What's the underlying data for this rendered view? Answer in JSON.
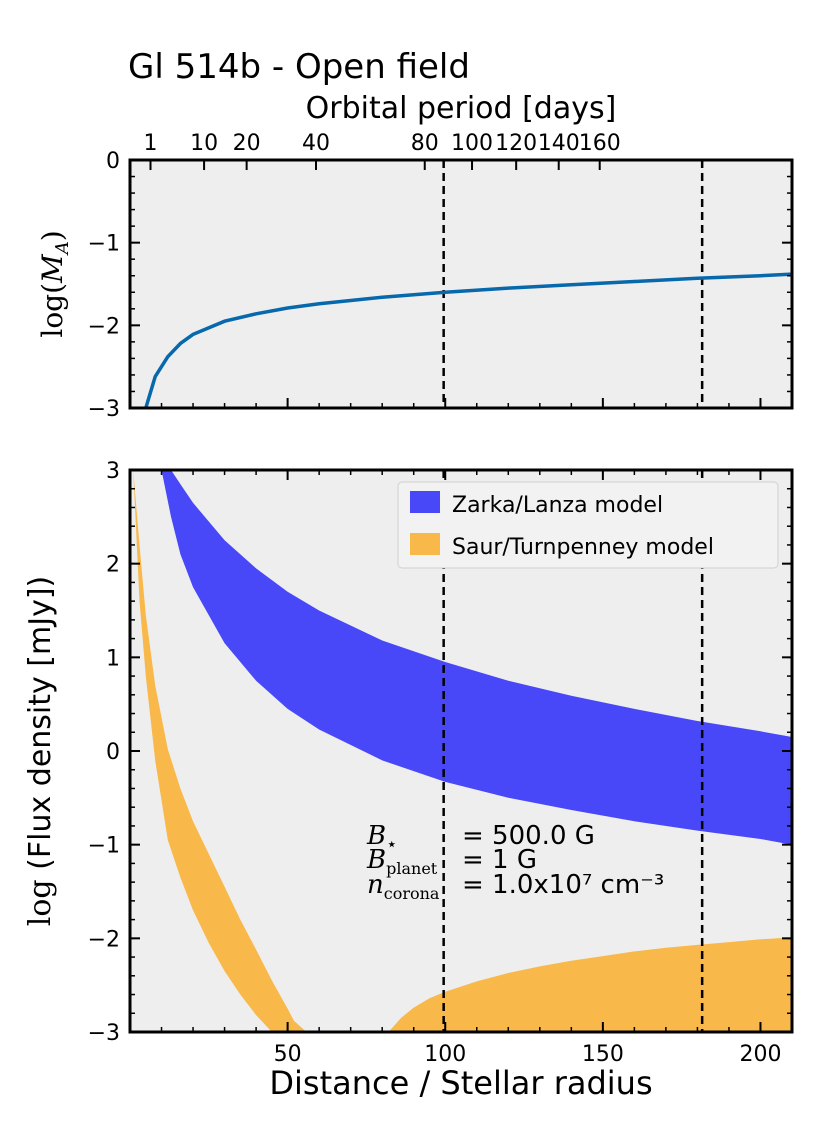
{
  "figure_title": "Gl 514b - Open field",
  "chart_data": [
    {
      "type": "line",
      "panel": "top",
      "title": "",
      "secondary_xlabel": "Orbital period [days]",
      "secondary_xticks": [
        {
          "label": "1",
          "distance": 6.5
        },
        {
          "label": "10",
          "distance": 23.5
        },
        {
          "label": "20",
          "distance": 37
        },
        {
          "label": "40",
          "distance": 59
        },
        {
          "label": "80",
          "distance": 93.5
        },
        {
          "label": "100",
          "distance": 108.5
        },
        {
          "label": "120",
          "distance": 122.5
        },
        {
          "label": "140",
          "distance": 136
        },
        {
          "label": "160",
          "distance": 149
        }
      ],
      "ylabel": "log(M_A)",
      "ylim": [
        -3,
        0
      ],
      "yticks": [
        0,
        -1,
        -2,
        -3
      ],
      "ytick_labels": [
        "0",
        "−1",
        "−2",
        "−3"
      ],
      "xlim": [
        0,
        210
      ],
      "grid": false,
      "series": [
        {
          "color": "#0868ac",
          "x": [
            5,
            8,
            12,
            16,
            20,
            30,
            40,
            50,
            60,
            70,
            80,
            90,
            100,
            120,
            140,
            160,
            180,
            200,
            210
          ],
          "y": [
            -3.0,
            -2.62,
            -2.38,
            -2.22,
            -2.11,
            -1.95,
            -1.86,
            -1.79,
            -1.74,
            -1.7,
            -1.66,
            -1.63,
            -1.6,
            -1.55,
            -1.51,
            -1.47,
            -1.43,
            -1.4,
            -1.38
          ]
        }
      ],
      "vlines": [
        99.5,
        181.5
      ]
    },
    {
      "type": "area",
      "panel": "bottom",
      "xlabel": "Distance / Stellar radius",
      "ylabel": "log (Flux density [mJy])",
      "xlim": [
        0,
        210
      ],
      "ylim": [
        -3,
        3
      ],
      "xticks": [
        50,
        100,
        150,
        200
      ],
      "yticks": [
        3,
        2,
        1,
        0,
        -1,
        -2,
        -3
      ],
      "ytick_labels": [
        "3",
        "2",
        "1",
        "0",
        "−1",
        "−2",
        "−3"
      ],
      "grid": false,
      "legend_position": "top-right",
      "legend": [
        {
          "label": "Zarka/Lanza model",
          "color": "#4848f8"
        },
        {
          "label": "Saur/Turnpenney model",
          "color": "#f8b84a"
        }
      ],
      "series": [
        {
          "name": "Zarka/Lanza model",
          "color": "#4848f8",
          "x": [
            10,
            13,
            16,
            20,
            30,
            40,
            50,
            60,
            80,
            100,
            120,
            140,
            160,
            180,
            200,
            210
          ],
          "upper": [
            3.0,
            3.0,
            2.85,
            2.65,
            2.25,
            1.95,
            1.7,
            1.5,
            1.18,
            0.95,
            0.75,
            0.59,
            0.45,
            0.32,
            0.21,
            0.15
          ],
          "lower": [
            3.0,
            2.5,
            2.1,
            1.75,
            1.15,
            0.75,
            0.45,
            0.23,
            -0.1,
            -0.33,
            -0.5,
            -0.63,
            -0.75,
            -0.85,
            -0.94,
            -1.0
          ]
        },
        {
          "name": "Saur/Turnpenney model",
          "color": "#f8b84a",
          "x": [
            1,
            3,
            5,
            8,
            12,
            16,
            20,
            25,
            30,
            35,
            40,
            45,
            50,
            52,
            56
          ],
          "upper": [
            3.0,
            2.2,
            1.45,
            0.7,
            0.02,
            -0.4,
            -0.75,
            -1.1,
            -1.45,
            -1.8,
            -2.12,
            -2.45,
            -2.75,
            -2.88,
            -3.0
          ],
          "lower": [
            3.0,
            1.6,
            0.8,
            -0.1,
            -0.95,
            -1.35,
            -1.7,
            -2.05,
            -2.35,
            -2.6,
            -2.82,
            -3.0,
            -3.0,
            -3.0,
            -3.0
          ]
        },
        {
          "name": "Saur/Turnpenney model (far branch)",
          "color": "#f8b84a",
          "x": [
            82,
            86,
            90,
            95,
            100,
            110,
            120,
            130,
            140,
            150,
            160,
            170,
            180,
            190,
            200,
            210
          ],
          "upper": [
            -3.0,
            -2.85,
            -2.74,
            -2.64,
            -2.57,
            -2.46,
            -2.37,
            -2.3,
            -2.24,
            -2.19,
            -2.14,
            -2.1,
            -2.07,
            -2.04,
            -2.01,
            -1.99
          ],
          "lower": [
            -3.0,
            -3.0,
            -3.0,
            -3.0,
            -3.0,
            -3.0,
            -3.0,
            -3.0,
            -3.0,
            -3.0,
            -3.0,
            -3.0,
            -3.0,
            -3.0,
            -3.0,
            -3.0
          ]
        }
      ],
      "vlines": [
        99.5,
        181.5
      ],
      "annotations": [
        {
          "label": "B_⋆",
          "value": "= 500.0 G"
        },
        {
          "label": "B_planet",
          "value": "= 1 G"
        },
        {
          "label": "n_corona",
          "value": "= 1.0x10⁷ cm⁻³"
        }
      ]
    }
  ]
}
